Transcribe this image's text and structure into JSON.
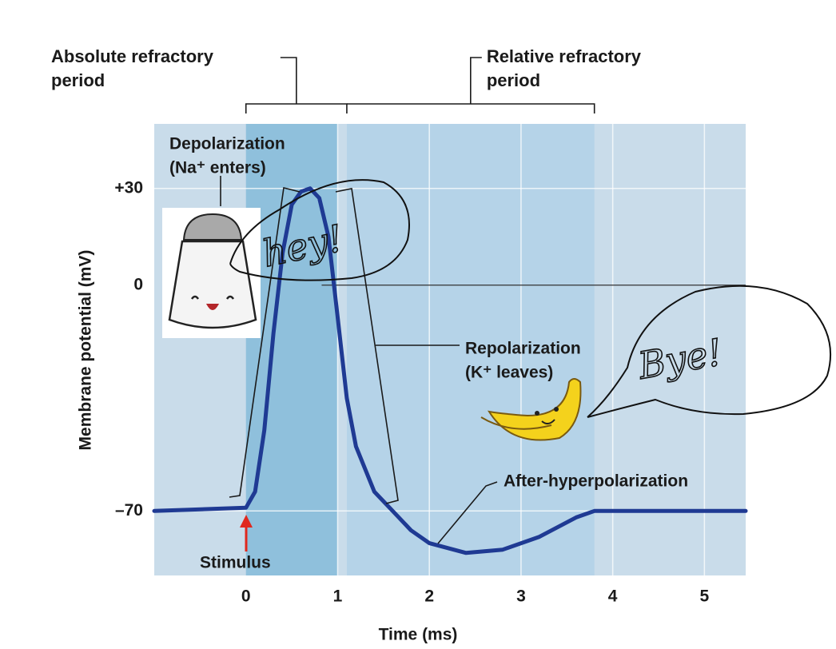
{
  "chart_data": {
    "type": "line",
    "xlabel": "Time (ms)",
    "ylabel": "Membrane potential (mV)",
    "x": [
      -1,
      0,
      0.1,
      0.2,
      0.3,
      0.4,
      0.5,
      0.6,
      0.7,
      0.8,
      0.9,
      1.0,
      1.1,
      1.2,
      1.4,
      1.6,
      1.8,
      2.0,
      2.4,
      2.8,
      3.2,
      3.6,
      3.8,
      4.5,
      5.45
    ],
    "values": [
      -70,
      -69,
      -64,
      -45,
      -15,
      10,
      25,
      29,
      30,
      27,
      15,
      -10,
      -35,
      -50,
      -64,
      -70,
      -76,
      -80,
      -83,
      -82,
      -78,
      -72,
      -70,
      -70,
      -70
    ],
    "color": "#1f3a93",
    "xlim": [
      -1,
      5.45
    ],
    "ylim": [
      -90,
      50
    ],
    "xticks": [
      0,
      1,
      2,
      3,
      4,
      5
    ],
    "yticks": [
      {
        "value": -70,
        "label": "–70"
      },
      0,
      {
        "value": 30,
        "label": "+30"
      }
    ],
    "grid": true,
    "zero_line": true,
    "background": "#c9dcea",
    "regions": [
      {
        "label": [
          "Absolute refractory",
          "period"
        ],
        "start": 0,
        "end": 1,
        "color": "#8fc0dc"
      },
      {
        "label": [
          "Relative refractory",
          "period"
        ],
        "start": 1.1,
        "end": 3.8,
        "color": "#b5d3e8"
      }
    ],
    "annotations": {
      "depolarization": [
        "Depolarization",
        "(Na⁺ enters)"
      ],
      "repolarization": [
        "Repolarization",
        "(K⁺ leaves)"
      ],
      "after": "After-hyperpolarization",
      "stimulus": "Stimulus",
      "hey": "hey!",
      "bye": "Bye!"
    }
  }
}
